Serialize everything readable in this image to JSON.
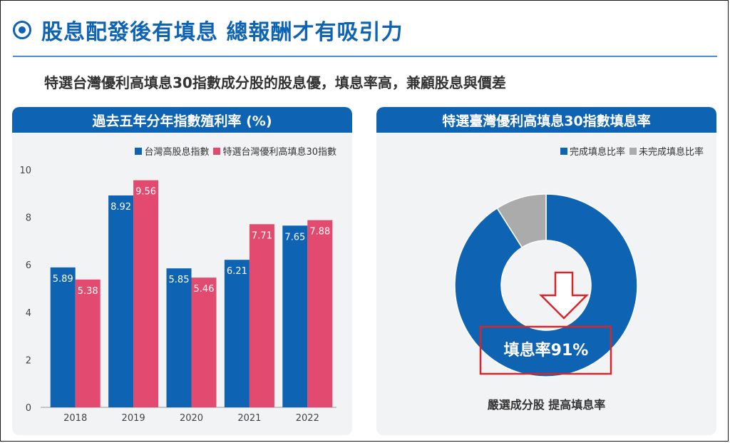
{
  "header": {
    "title": "股息配發後有填息 總報酬才有吸引力",
    "subtitle": "特選台灣優利高填息30指數成分股的股息優，填息率高，兼顧股息與價差"
  },
  "colors": {
    "brand_blue": "#0e63b3",
    "accent_pink": "#e24a6f",
    "gray": "#ababab",
    "highlight_red": "#d6262b"
  },
  "left_panel": {
    "title": "過去五年分年指數殖利率 (%)"
  },
  "right_panel": {
    "title": "特選臺灣優利高填息30指數填息率",
    "callout": "填息率91%",
    "note": "嚴選成分股  提高填息率"
  },
  "chart_data": [
    {
      "type": "bar",
      "title": "過去五年分年指數殖利率 (%)",
      "categories": [
        "2018",
        "2019",
        "2020",
        "2021",
        "2022"
      ],
      "series": [
        {
          "name": "台灣高股息指數",
          "color": "#0e63b3",
          "values": [
            5.89,
            8.92,
            5.85,
            6.21,
            7.65
          ]
        },
        {
          "name": "特選台灣優利高填息30指數",
          "color": "#e24a6f",
          "values": [
            5.38,
            9.56,
            5.46,
            7.71,
            7.88
          ]
        }
      ],
      "ylim": [
        0,
        10
      ],
      "yticks": [
        0,
        2,
        4,
        6,
        8,
        10
      ],
      "legend": "top-right",
      "grid": false
    },
    {
      "type": "pie",
      "title": "特選臺灣優利高填息30指數填息率",
      "donut": true,
      "slices": [
        {
          "name": "完成填息比率",
          "value": 91,
          "color": "#0e63b3"
        },
        {
          "name": "未完成填息比率",
          "value": 9,
          "color": "#ababab"
        }
      ],
      "legend": "top-right"
    }
  ]
}
